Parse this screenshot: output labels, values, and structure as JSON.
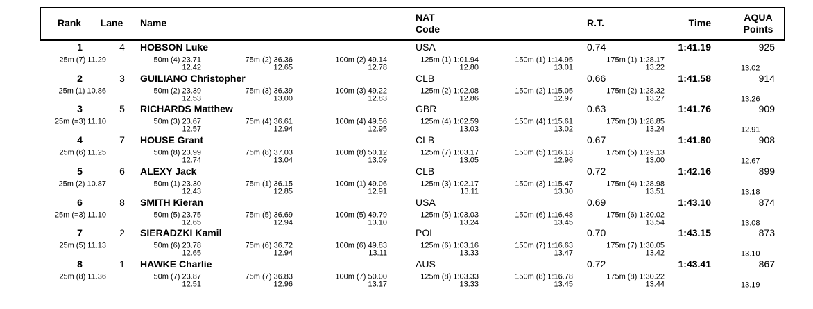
{
  "header": {
    "rank": "Rank",
    "lane": "Lane",
    "name": "Name",
    "nat": [
      "NAT",
      "Code"
    ],
    "rt": "R.T.",
    "time": "Time",
    "points": [
      "AQUA",
      "Points"
    ]
  },
  "rows": [
    {
      "rank": "1",
      "lane": "4",
      "name": "HOBSON Luke",
      "nat": "USA",
      "rt": "0.74",
      "time": "1:41.19",
      "points": "925",
      "split25": "25m (7) 11.29",
      "splits": [
        [
          "50m (4) 23.71",
          "12.42"
        ],
        [
          "75m (2) 36.36",
          "12.65"
        ],
        [
          "100m (2) 49.14",
          "12.78"
        ],
        [
          "125m (1) 1:01.94",
          "12.80"
        ],
        [
          "150m (1) 1:14.95",
          "13.01"
        ],
        [
          "175m (1) 1:28.17",
          "13.22"
        ]
      ],
      "last_lap": "13.02"
    },
    {
      "rank": "2",
      "lane": "3",
      "name": "GUILIANO Christopher",
      "nat": "CLB",
      "rt": "0.66",
      "time": "1:41.58",
      "points": "914",
      "split25": "25m (1) 10.86",
      "splits": [
        [
          "50m (2) 23.39",
          "12.53"
        ],
        [
          "75m (3) 36.39",
          "13.00"
        ],
        [
          "100m (3) 49.22",
          "12.83"
        ],
        [
          "125m (2) 1:02.08",
          "12.86"
        ],
        [
          "150m (2) 1:15.05",
          "12.97"
        ],
        [
          "175m (2) 1:28.32",
          "13.27"
        ]
      ],
      "last_lap": "13.26"
    },
    {
      "rank": "3",
      "lane": "5",
      "name": "RICHARDS Matthew",
      "nat": "GBR",
      "rt": "0.63",
      "time": "1:41.76",
      "points": "909",
      "split25": "25m (=3) 11.10",
      "splits": [
        [
          "50m (3) 23.67",
          "12.57"
        ],
        [
          "75m (4) 36.61",
          "12.94"
        ],
        [
          "100m (4) 49.56",
          "12.95"
        ],
        [
          "125m (4) 1:02.59",
          "13.03"
        ],
        [
          "150m (4) 1:15.61",
          "13.02"
        ],
        [
          "175m (3) 1:28.85",
          "13.24"
        ]
      ],
      "last_lap": "12.91"
    },
    {
      "rank": "4",
      "lane": "7",
      "name": "HOUSE Grant",
      "nat": "CLB",
      "rt": "0.67",
      "time": "1:41.80",
      "points": "908",
      "split25": "25m (6) 11.25",
      "splits": [
        [
          "50m (8) 23.99",
          "12.74"
        ],
        [
          "75m (8) 37.03",
          "13.04"
        ],
        [
          "100m (8) 50.12",
          "13.09"
        ],
        [
          "125m (7) 1:03.17",
          "13.05"
        ],
        [
          "150m (5) 1:16.13",
          "12.96"
        ],
        [
          "175m (5) 1:29.13",
          "13.00"
        ]
      ],
      "last_lap": "12.67"
    },
    {
      "rank": "5",
      "lane": "6",
      "name": "ALEXY Jack",
      "nat": "CLB",
      "rt": "0.72",
      "time": "1:42.16",
      "points": "899",
      "split25": "25m (2) 10.87",
      "splits": [
        [
          "50m (1) 23.30",
          "12.43"
        ],
        [
          "75m (1) 36.15",
          "12.85"
        ],
        [
          "100m (1) 49.06",
          "12.91"
        ],
        [
          "125m (3) 1:02.17",
          "13.11"
        ],
        [
          "150m (3) 1:15.47",
          "13.30"
        ],
        [
          "175m (4) 1:28.98",
          "13.51"
        ]
      ],
      "last_lap": "13.18"
    },
    {
      "rank": "6",
      "lane": "8",
      "name": "SMITH Kieran",
      "nat": "USA",
      "rt": "0.69",
      "time": "1:43.10",
      "points": "874",
      "split25": "25m (=3) 11.10",
      "splits": [
        [
          "50m (5) 23.75",
          "12.65"
        ],
        [
          "75m (5) 36.69",
          "12.94"
        ],
        [
          "100m (5) 49.79",
          "13.10"
        ],
        [
          "125m (5) 1:03.03",
          "13.24"
        ],
        [
          "150m (6) 1:16.48",
          "13.45"
        ],
        [
          "175m (6) 1:30.02",
          "13.54"
        ]
      ],
      "last_lap": "13.08"
    },
    {
      "rank": "7",
      "lane": "2",
      "name": "SIERADZKI Kamil",
      "nat": "POL",
      "rt": "0.70",
      "time": "1:43.15",
      "points": "873",
      "split25": "25m (5) 11.13",
      "splits": [
        [
          "50m (6) 23.78",
          "12.65"
        ],
        [
          "75m (6) 36.72",
          "12.94"
        ],
        [
          "100m (6) 49.83",
          "13.11"
        ],
        [
          "125m (6) 1:03.16",
          "13.33"
        ],
        [
          "150m (7) 1:16.63",
          "13.47"
        ],
        [
          "175m (7) 1:30.05",
          "13.42"
        ]
      ],
      "last_lap": "13.10"
    },
    {
      "rank": "8",
      "lane": "1",
      "name": "HAWKE Charlie",
      "nat": "AUS",
      "rt": "0.72",
      "time": "1:43.41",
      "points": "867",
      "split25": "25m (8) 11.36",
      "splits": [
        [
          "50m (7) 23.87",
          "12.51"
        ],
        [
          "75m (7) 36.83",
          "12.96"
        ],
        [
          "100m (7) 50.00",
          "13.17"
        ],
        [
          "125m (8) 1:03.33",
          "13.33"
        ],
        [
          "150m (8) 1:16.78",
          "13.45"
        ],
        [
          "175m (8) 1:30.22",
          "13.44"
        ]
      ],
      "last_lap": "13.19"
    }
  ]
}
